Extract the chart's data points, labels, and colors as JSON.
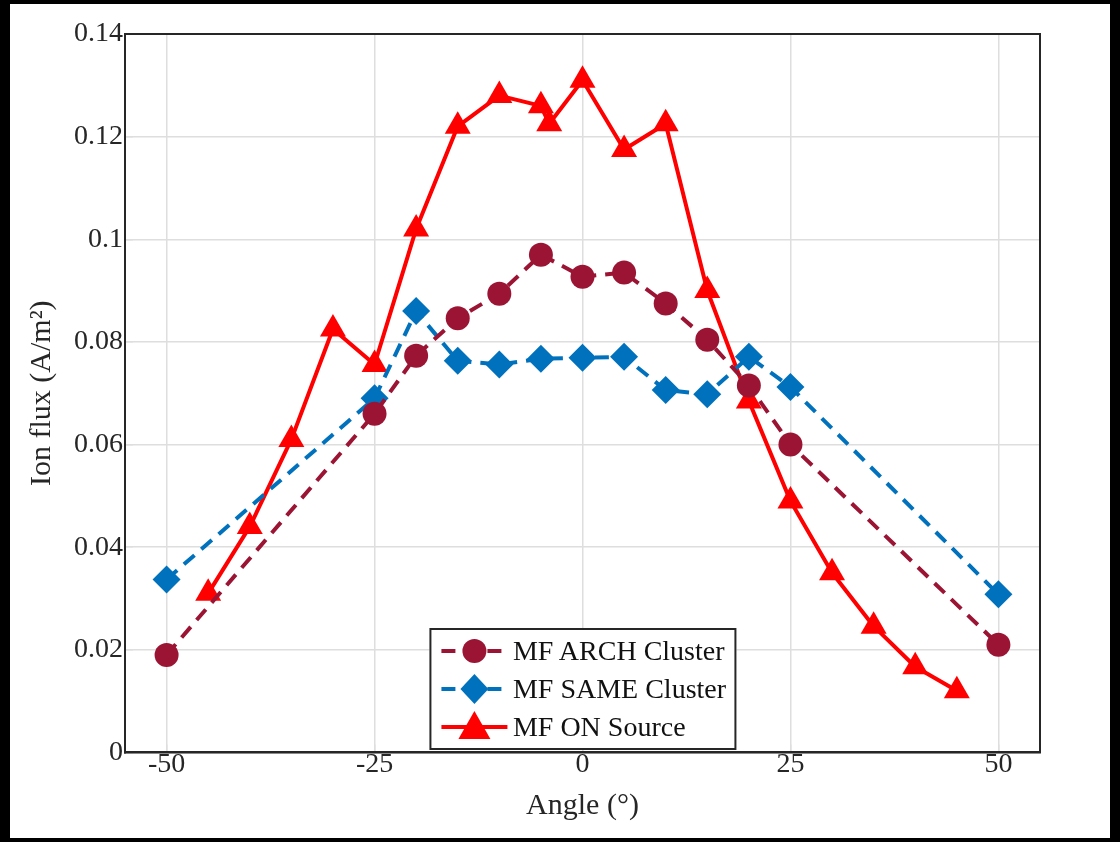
{
  "chart_data": {
    "type": "line",
    "xlabel": "Angle (°)",
    "ylabel": "Ion flux (A/m²)",
    "xlim": [
      -55,
      55
    ],
    "xticks": [
      -50,
      -25,
      0,
      25,
      50
    ],
    "ylim": [
      0,
      0.14
    ],
    "yticks": [
      0,
      0.02,
      0.04,
      0.06,
      0.08,
      0.1,
      0.12,
      0.14
    ],
    "grid": true,
    "legend": "bottom",
    "series": [
      {
        "name": "MF ARCH Cluster",
        "color": "#9b1433",
        "marker": "circle",
        "line_style": "dashed",
        "x": [
          -50,
          -25,
          -20,
          -15,
          -10,
          -5,
          0,
          5,
          10,
          15,
          20,
          25,
          50
        ],
        "values": [
          0.019,
          0.066,
          0.0773,
          0.0846,
          0.0894,
          0.097,
          0.0927,
          0.0935,
          0.0875,
          0.0804,
          0.0715,
          0.06,
          0.021
        ]
      },
      {
        "name": "MF SAME Cluster",
        "color": "#0072bd",
        "marker": "diamond",
        "line_style": "dashed",
        "x": [
          -50,
          -25,
          -20,
          -15,
          -10,
          -5,
          0,
          5,
          10,
          15,
          20,
          25,
          50
        ],
        "values": [
          0.0337,
          0.069,
          0.086,
          0.0763,
          0.0756,
          0.0767,
          0.0769,
          0.0771,
          0.0706,
          0.0698,
          0.0771,
          0.0712,
          0.0308
        ]
      },
      {
        "name": "MF ON Source",
        "color": "#ff0000",
        "marker": "triangle",
        "line_style": "solid",
        "x": [
          -45,
          -40,
          -35,
          -30,
          -25,
          -20,
          -15,
          -10,
          -5,
          -4,
          0,
          5,
          10,
          15,
          20,
          25,
          30,
          35,
          40,
          45
        ],
        "values": [
          0.031,
          0.044,
          0.061,
          0.0825,
          0.0756,
          0.102,
          0.122,
          0.128,
          0.126,
          0.1225,
          0.131,
          0.1175,
          0.1225,
          0.09,
          0.0685,
          0.049,
          0.035,
          0.0246,
          0.0167,
          0.012
        ]
      }
    ]
  }
}
